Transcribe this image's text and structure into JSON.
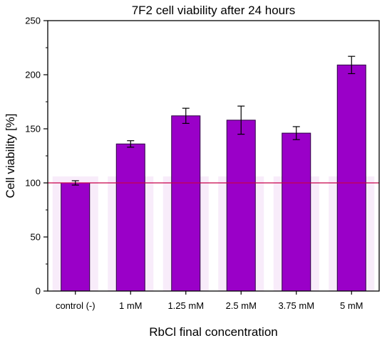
{
  "chart_data": {
    "type": "bar",
    "title": "7F2 cell viability after 24 hours",
    "xlabel": "RbCl final concentration",
    "ylabel": "Cell viability [%]",
    "categories": [
      "control (-)",
      "1 mM",
      "1.25 mM",
      "2.5 mM",
      "3.75 mM",
      "5 mM"
    ],
    "values": [
      100,
      136,
      162,
      158,
      146,
      209
    ],
    "errors": [
      2,
      3,
      7,
      13,
      6,
      8
    ],
    "ylim": [
      0,
      250
    ],
    "yticks": [
      0,
      50,
      100,
      150,
      200,
      250
    ],
    "reference_line": 100,
    "grid": false,
    "legend": "none",
    "colors": {
      "bar_fill": "#9a00c8",
      "bar_edge": "#2a0040",
      "reference_line": "#c8004b",
      "error_bar": "#000000",
      "bar_halo": "#f3e0f7"
    }
  }
}
